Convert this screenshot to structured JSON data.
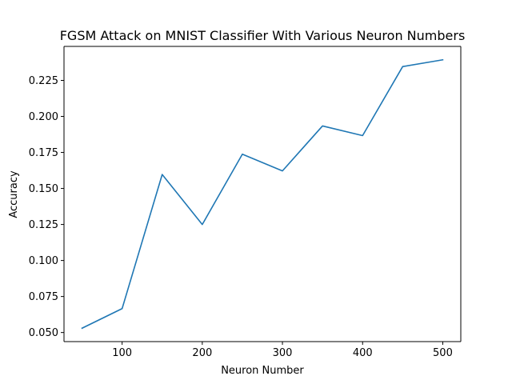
{
  "chart_data": {
    "type": "line",
    "title": "FGSM Attack on MNIST Classifier With Various Neuron Numbers",
    "xlabel": "Neuron Number",
    "ylabel": "Accuracy",
    "x": [
      50,
      100,
      150,
      200,
      250,
      300,
      350,
      400,
      450,
      500
    ],
    "series": [
      {
        "values": [
          0.053,
          0.0666,
          0.1597,
          0.125,
          0.1738,
          0.1622,
          0.1934,
          0.1867,
          0.2346,
          0.2393
        ],
        "color": "#1f77b4"
      }
    ],
    "xlim": [
      27.5,
      522.5
    ],
    "ylim": [
      0.0437,
      0.2486
    ],
    "xticks": [
      100,
      200,
      300,
      400,
      500
    ],
    "yticks": [
      0.05,
      0.075,
      0.1,
      0.125,
      0.15,
      0.175,
      0.2,
      0.225
    ],
    "xtick_labels": [
      "100",
      "200",
      "300",
      "400",
      "500"
    ],
    "ytick_labels": [
      "0.050",
      "0.075",
      "0.100",
      "0.125",
      "0.150",
      "0.175",
      "0.200",
      "0.225"
    ],
    "grid": false,
    "legend": "none"
  }
}
